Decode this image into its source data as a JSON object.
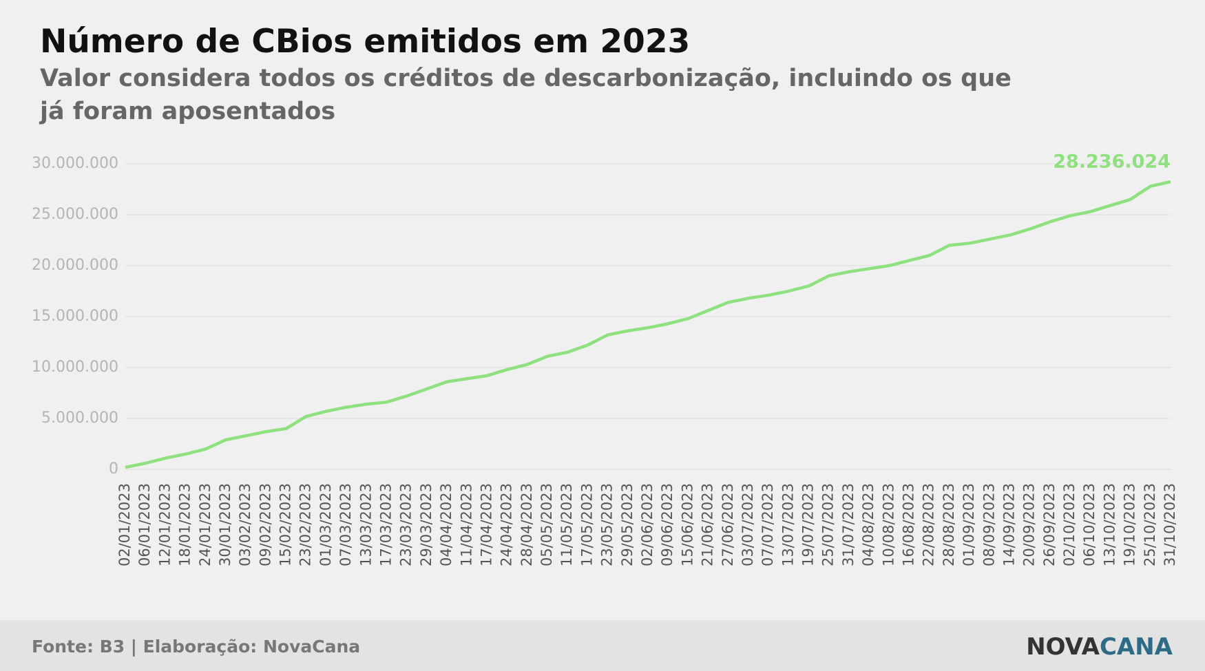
{
  "chart_data": {
    "type": "line",
    "title": "Número de CBios emitidos em 2023",
    "subtitle": [
      "Valor considera todos os créditos de descarbonização, incluindo os que",
      "já foram aposentados"
    ],
    "categories": [
      "02/01/2023",
      "06/01/2023",
      "12/01/2023",
      "18/01/2023",
      "24/01/2023",
      "30/01/2023",
      "03/02/2023",
      "09/02/2023",
      "15/02/2023",
      "23/02/2023",
      "01/03/2023",
      "07/03/2023",
      "13/03/2023",
      "17/03/2023",
      "23/03/2023",
      "29/03/2023",
      "04/04/2023",
      "11/04/2023",
      "17/04/2023",
      "24/04/2023",
      "28/04/2023",
      "05/05/2023",
      "11/05/2023",
      "17/05/2023",
      "23/05/2023",
      "29/05/2023",
      "02/06/2023",
      "09/06/2023",
      "15/06/2023",
      "21/06/2023",
      "27/06/2023",
      "03/07/2023",
      "07/07/2023",
      "13/07/2023",
      "19/07/2023",
      "25/07/2023",
      "31/07/2023",
      "04/08/2023",
      "10/08/2023",
      "16/08/2023",
      "22/08/2023",
      "28/08/2023",
      "01/09/2023",
      "08/09/2023",
      "14/09/2023",
      "20/09/2023",
      "26/09/2023",
      "02/10/2023",
      "06/10/2023",
      "13/10/2023",
      "19/10/2023",
      "25/10/2023",
      "31/10/2023"
    ],
    "values": [
      200000,
      600000,
      1100000,
      1500000,
      2000000,
      2900000,
      3300000,
      3700000,
      4000000,
      5200000,
      5700000,
      6100000,
      6400000,
      6600000,
      7200000,
      7900000,
      8600000,
      8900000,
      9200000,
      9800000,
      10300000,
      11100000,
      11500000,
      12200000,
      13200000,
      13600000,
      13900000,
      14300000,
      14800000,
      15600000,
      16400000,
      16800000,
      17100000,
      17500000,
      18000000,
      19000000,
      19400000,
      19700000,
      20000000,
      20500000,
      21000000,
      22000000,
      22200000,
      22600000,
      23000000,
      23600000,
      24300000,
      24900000,
      25300000,
      25900000,
      26500000,
      27800000,
      28236024
    ],
    "value_labels": [
      null,
      null,
      null,
      null,
      null,
      null,
      null,
      null,
      null,
      null,
      null,
      null,
      null,
      null,
      null,
      null,
      null,
      null,
      null,
      null,
      null,
      null,
      null,
      null,
      null,
      null,
      null,
      null,
      null,
      null,
      null,
      null,
      null,
      null,
      null,
      null,
      null,
      null,
      null,
      null,
      null,
      null,
      null,
      null,
      null,
      null,
      null,
      null,
      null,
      null,
      null,
      null,
      "28.236.024"
    ],
    "color": "#8fe07e",
    "ylim": [
      0,
      30000000
    ],
    "yticks": [
      0,
      {
        "value": 5000000,
        "label": "5.000.000"
      },
      {
        "value": 10000000,
        "label": "10.000.000"
      },
      {
        "value": 15000000,
        "label": "15.000.000"
      },
      {
        "value": 20000000,
        "label": "20.000.000"
      },
      {
        "value": 25000000,
        "label": "25.000.000"
      },
      {
        "value": 30000000,
        "label": "30.000.000"
      }
    ],
    "grid": true
  },
  "footer": {
    "source": "Fonte: B3 | Elaboração: NovaCana",
    "logo_left": "NOVA",
    "logo_right": "CANA"
  }
}
